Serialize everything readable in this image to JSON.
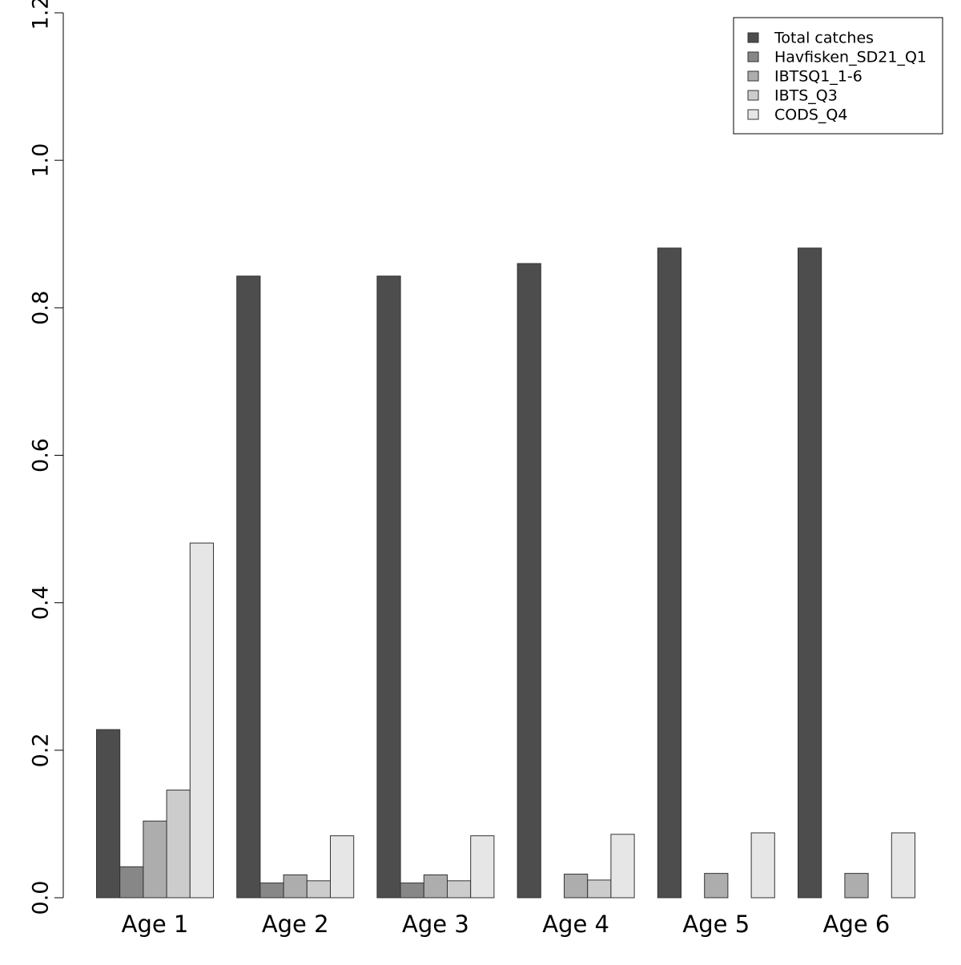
{
  "chart_data": {
    "type": "bar",
    "categories": [
      "Age 1",
      "Age 2",
      "Age 3",
      "Age 4",
      "Age 5",
      "Age 6"
    ],
    "series": [
      {
        "name": "Total catches",
        "color": "#4d4d4d",
        "values": [
          0.228,
          0.843,
          0.843,
          0.86,
          0.881,
          0.881
        ]
      },
      {
        "name": "Havfisken_SD21_Q1",
        "color": "#878787",
        "values": [
          0.042,
          0.02,
          0.02,
          null,
          null,
          null
        ]
      },
      {
        "name": "IBTSQ1_1-6",
        "color": "#adadad",
        "values": [
          0.104,
          0.031,
          0.031,
          0.032,
          0.033,
          0.033
        ]
      },
      {
        "name": "IBTS_Q3",
        "color": "#cccccc",
        "values": [
          0.146,
          0.023,
          0.023,
          0.024,
          null,
          null
        ]
      },
      {
        "name": "CODS_Q4",
        "color": "#e6e6e6",
        "values": [
          0.481,
          0.084,
          0.084,
          0.086,
          0.088,
          0.088
        ]
      }
    ],
    "y_ticks": [
      "0.0",
      "0.2",
      "0.4",
      "0.6",
      "0.8",
      "1.0",
      "1.2"
    ],
    "ylim": [
      0,
      1.2
    ],
    "xlabel": "",
    "ylabel": "",
    "title": "",
    "grid": false,
    "legend_position": "top-right"
  }
}
